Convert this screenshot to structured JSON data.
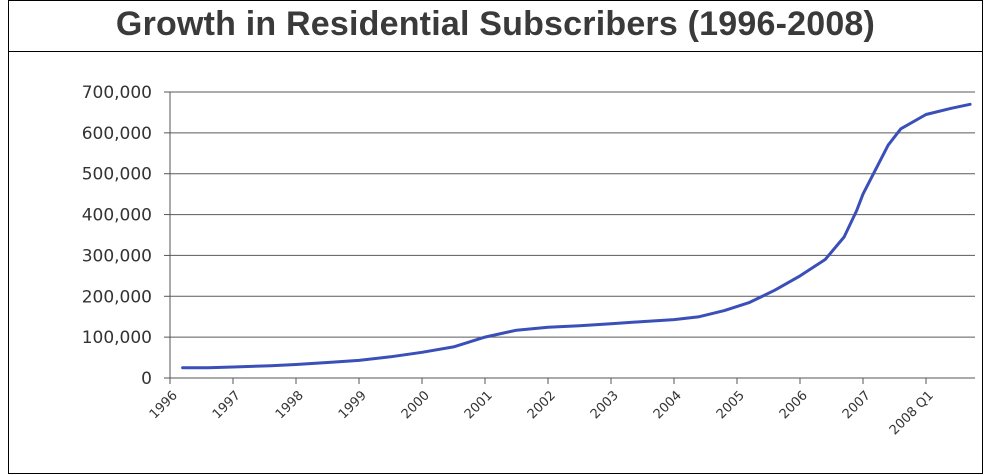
{
  "chart_data": {
    "type": "line",
    "title": "Growth in Residential Subscribers (1996-2008)",
    "xlabel": "",
    "ylabel": "",
    "ylim": [
      0,
      700000
    ],
    "yticks": [
      0,
      100000,
      200000,
      300000,
      400000,
      500000,
      600000,
      700000
    ],
    "ytick_labels": [
      "0",
      "100,000",
      "200,000",
      "300,000",
      "400,000",
      "500,000",
      "600,000",
      "700,000"
    ],
    "categories": [
      "1996",
      "1997",
      "1998",
      "1999",
      "2000",
      "2001",
      "2002",
      "2003",
      "2004",
      "2005",
      "2006",
      "2007",
      "2008 Q1"
    ],
    "grid": true,
    "series": [
      {
        "color": "#3b4fb8",
        "points": [
          {
            "x": 0.2,
            "y": 25000
          },
          {
            "x": 0.6,
            "y": 25000
          },
          {
            "x": 1.0,
            "y": 27000
          },
          {
            "x": 1.6,
            "y": 30000
          },
          {
            "x": 2.0,
            "y": 33000
          },
          {
            "x": 2.5,
            "y": 38000
          },
          {
            "x": 3.0,
            "y": 43000
          },
          {
            "x": 3.5,
            "y": 52000
          },
          {
            "x": 4.0,
            "y": 63000
          },
          {
            "x": 4.5,
            "y": 76000
          },
          {
            "x": 5.0,
            "y": 100000
          },
          {
            "x": 5.5,
            "y": 117000
          },
          {
            "x": 6.0,
            "y": 124000
          },
          {
            "x": 6.5,
            "y": 128000
          },
          {
            "x": 7.0,
            "y": 133000
          },
          {
            "x": 7.5,
            "y": 138000
          },
          {
            "x": 8.0,
            "y": 143000
          },
          {
            "x": 8.4,
            "y": 150000
          },
          {
            "x": 8.8,
            "y": 165000
          },
          {
            "x": 9.2,
            "y": 185000
          },
          {
            "x": 9.6,
            "y": 215000
          },
          {
            "x": 10.0,
            "y": 250000
          },
          {
            "x": 10.4,
            "y": 290000
          },
          {
            "x": 10.7,
            "y": 345000
          },
          {
            "x": 10.9,
            "y": 410000
          },
          {
            "x": 11.0,
            "y": 450000
          },
          {
            "x": 11.2,
            "y": 510000
          },
          {
            "x": 11.4,
            "y": 570000
          },
          {
            "x": 11.6,
            "y": 610000
          },
          {
            "x": 12.0,
            "y": 645000
          },
          {
            "x": 12.4,
            "y": 660000
          },
          {
            "x": 12.7,
            "y": 670000
          }
        ]
      }
    ]
  }
}
